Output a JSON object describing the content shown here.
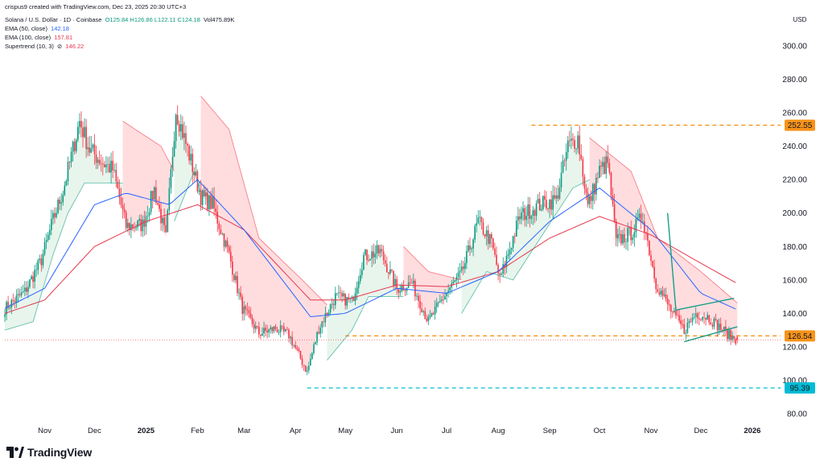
{
  "header": {
    "credit": "crispus9 created with TradingView.com, Dec 23, 2025 20:30 UTC+3",
    "symbol": "Solana / U.S. Dollar · 1D · Coinbase",
    "ohlc": "O125.84 H126.86 L122.11 C124.18",
    "volume": "Vol475.89K",
    "ema50_label": "EMA (50, close)",
    "ema50_value": "142.18",
    "ema100_label": "EMA (100, close)",
    "ema100_value": "157.81",
    "supertrend_label": "Supertrend (10, 3)",
    "supertrend_icon": "⊘",
    "supertrend_value": "146.22"
  },
  "brand": {
    "name": "TradingView",
    "icon": "tradingview-logo-icon"
  },
  "colors": {
    "up": "#089981",
    "down": "#f23645",
    "ema50": "#2962ff",
    "ema100": "#e5374d",
    "st_up_fill": "#e6f4ea",
    "st_down_fill": "#ffd9dc",
    "level_orange": "#f7931a",
    "level_blue": "#00bcd4",
    "triangle": "#089981"
  },
  "chart_data": {
    "type": "candlestick",
    "currency": "USD",
    "ylim": [
      80,
      305
    ],
    "y_ticks": [
      "80.00",
      "100.00",
      "120.00",
      "140.00",
      "160.00",
      "180.00",
      "200.00",
      "220.00",
      "240.00",
      "260.00",
      "280.00",
      "300.00"
    ],
    "x_ticks": [
      "Nov",
      "Dec",
      "2025",
      "Feb",
      "Mar",
      "Apr",
      "May",
      "Jun",
      "Jul",
      "Aug",
      "Sep",
      "Oct",
      "Nov",
      "Dec",
      "2026"
    ],
    "x_tick_dates": [
      "2024-11-01",
      "2024-12-01",
      "2025-01-01",
      "2025-02-01",
      "2025-03-01",
      "2025-04-01",
      "2025-05-01",
      "2025-06-01",
      "2025-07-01",
      "2025-08-01",
      "2025-09-01",
      "2025-10-01",
      "2025-11-01",
      "2025-12-01",
      "2026-01-01"
    ],
    "x_range": [
      "2024-10-08",
      "2026-01-18"
    ],
    "approx_close_path": [
      [
        "2024-10-08",
        143
      ],
      [
        "2024-10-20",
        153
      ],
      [
        "2024-10-30",
        172
      ],
      [
        "2024-11-06",
        196
      ],
      [
        "2024-11-12",
        213
      ],
      [
        "2024-11-22",
        255
      ],
      [
        "2024-11-28",
        238
      ],
      [
        "2024-12-06",
        230
      ],
      [
        "2024-12-12",
        226
      ],
      [
        "2024-12-20",
        192
      ],
      [
        "2024-12-30",
        193
      ],
      [
        "2025-01-06",
        214
      ],
      [
        "2025-01-13",
        185
      ],
      [
        "2025-01-19",
        262
      ],
      [
        "2025-01-26",
        238
      ],
      [
        "2025-02-03",
        210
      ],
      [
        "2025-02-10",
        205
      ],
      [
        "2025-02-20",
        175
      ],
      [
        "2025-02-28",
        143
      ],
      [
        "2025-03-10",
        128
      ],
      [
        "2025-03-20",
        131
      ],
      [
        "2025-03-28",
        127
      ],
      [
        "2025-04-08",
        105
      ],
      [
        "2025-04-15",
        131
      ],
      [
        "2025-04-25",
        150
      ],
      [
        "2025-05-05",
        147
      ],
      [
        "2025-05-12",
        174
      ],
      [
        "2025-05-22",
        177
      ],
      [
        "2025-06-01",
        155
      ],
      [
        "2025-06-10",
        158
      ],
      [
        "2025-06-20",
        135
      ],
      [
        "2025-06-30",
        151
      ],
      [
        "2025-07-10",
        164
      ],
      [
        "2025-07-20",
        195
      ],
      [
        "2025-07-28",
        182
      ],
      [
        "2025-08-02",
        160
      ],
      [
        "2025-08-14",
        198
      ],
      [
        "2025-08-26",
        205
      ],
      [
        "2025-09-05",
        208
      ],
      [
        "2025-09-12",
        240
      ],
      [
        "2025-09-18",
        245
      ],
      [
        "2025-09-24",
        204
      ],
      [
        "2025-10-01",
        225
      ],
      [
        "2025-10-06",
        230
      ],
      [
        "2025-10-11",
        183
      ],
      [
        "2025-10-20",
        188
      ],
      [
        "2025-10-27",
        198
      ],
      [
        "2025-11-04",
        158
      ],
      [
        "2025-11-14",
        140
      ],
      [
        "2025-11-21",
        130
      ],
      [
        "2025-11-28",
        140
      ],
      [
        "2025-12-05",
        138
      ],
      [
        "2025-12-12",
        132
      ],
      [
        "2025-12-19",
        126
      ],
      [
        "2025-12-23",
        124.18
      ]
    ],
    "ema50_path": [
      [
        "2024-10-08",
        143
      ],
      [
        "2024-11-01",
        155
      ],
      [
        "2024-12-01",
        205
      ],
      [
        "2024-12-20",
        212
      ],
      [
        "2025-01-15",
        205
      ],
      [
        "2025-02-01",
        220
      ],
      [
        "2025-03-01",
        190
      ],
      [
        "2025-04-10",
        138
      ],
      [
        "2025-05-01",
        140
      ],
      [
        "2025-06-01",
        155
      ],
      [
        "2025-07-01",
        152
      ],
      [
        "2025-08-01",
        165
      ],
      [
        "2025-09-01",
        195
      ],
      [
        "2025-10-01",
        215
      ],
      [
        "2025-11-01",
        190
      ],
      [
        "2025-12-01",
        152
      ],
      [
        "2025-12-23",
        142.18
      ]
    ],
    "ema100_path": [
      [
        "2024-10-08",
        140
      ],
      [
        "2024-11-01",
        148
      ],
      [
        "2024-12-01",
        180
      ],
      [
        "2025-01-01",
        195
      ],
      [
        "2025-02-01",
        205
      ],
      [
        "2025-03-01",
        190
      ],
      [
        "2025-04-10",
        148
      ],
      [
        "2025-05-01",
        148
      ],
      [
        "2025-06-01",
        157
      ],
      [
        "2025-07-01",
        156
      ],
      [
        "2025-08-01",
        165
      ],
      [
        "2025-09-01",
        185
      ],
      [
        "2025-10-01",
        198
      ],
      [
        "2025-11-01",
        187
      ],
      [
        "2025-12-01",
        170
      ],
      [
        "2025-12-23",
        157.81
      ]
    ],
    "supertrend_segments": [
      {
        "trend": "up",
        "points": [
          [
            "2024-10-08",
            130
          ],
          [
            "2024-10-25",
            135
          ],
          [
            "2024-11-06",
            175
          ],
          [
            "2024-11-15",
            200
          ],
          [
            "2024-11-25",
            218
          ],
          [
            "2024-12-18",
            218
          ]
        ]
      },
      {
        "trend": "down",
        "points": [
          [
            "2024-12-18",
            255
          ],
          [
            "2025-01-10",
            240
          ],
          [
            "2025-01-18",
            225
          ]
        ]
      },
      {
        "trend": "up",
        "points": [
          [
            "2025-01-18",
            195
          ],
          [
            "2025-01-30",
            225
          ],
          [
            "2025-02-03",
            212
          ]
        ]
      },
      {
        "trend": "down",
        "points": [
          [
            "2025-02-03",
            270
          ],
          [
            "2025-02-20",
            250
          ],
          [
            "2025-03-10",
            185
          ],
          [
            "2025-04-05",
            160
          ],
          [
            "2025-04-20",
            145
          ]
        ]
      },
      {
        "trend": "up",
        "points": [
          [
            "2025-04-20",
            112
          ],
          [
            "2025-05-05",
            130
          ],
          [
            "2025-05-15",
            150
          ],
          [
            "2025-06-05",
            150
          ]
        ]
      },
      {
        "trend": "down",
        "points": [
          [
            "2025-06-05",
            180
          ],
          [
            "2025-06-20",
            165
          ],
          [
            "2025-07-10",
            160
          ]
        ]
      },
      {
        "trend": "up",
        "points": [
          [
            "2025-07-10",
            140
          ],
          [
            "2025-07-25",
            165
          ],
          [
            "2025-08-10",
            160
          ],
          [
            "2025-09-15",
            215
          ],
          [
            "2025-09-25",
            220
          ]
        ]
      },
      {
        "trend": "down",
        "points": [
          [
            "2025-09-25",
            245
          ],
          [
            "2025-10-20",
            225
          ],
          [
            "2025-11-05",
            185
          ],
          [
            "2025-12-01",
            165
          ],
          [
            "2025-12-23",
            146.22
          ]
        ]
      }
    ],
    "levels": [
      {
        "value": 252.55,
        "label": "252.55",
        "style": "dashed",
        "color": "orange",
        "from": "2025-08-21"
      },
      {
        "value": 126.54,
        "label": "126.54",
        "style": "dashed",
        "color": "orange",
        "from": "2025-05-01"
      },
      {
        "value": 95.39,
        "label": "95.39",
        "style": "dashed",
        "color": "blue",
        "from": "2025-04-08"
      }
    ],
    "triangle_pattern": {
      "upper": [
        [
          "2025-11-16",
          142
        ],
        [
          "2025-12-21",
          149
        ]
      ],
      "lower": [
        [
          "2025-11-21",
          123
        ],
        [
          "2025-12-23",
          132
        ]
      ],
      "entry_line": [
        [
          "2025-11-11",
          200
        ],
        [
          "2025-11-16",
          142
        ]
      ]
    },
    "price_axis_side": "right",
    "grid": false
  }
}
